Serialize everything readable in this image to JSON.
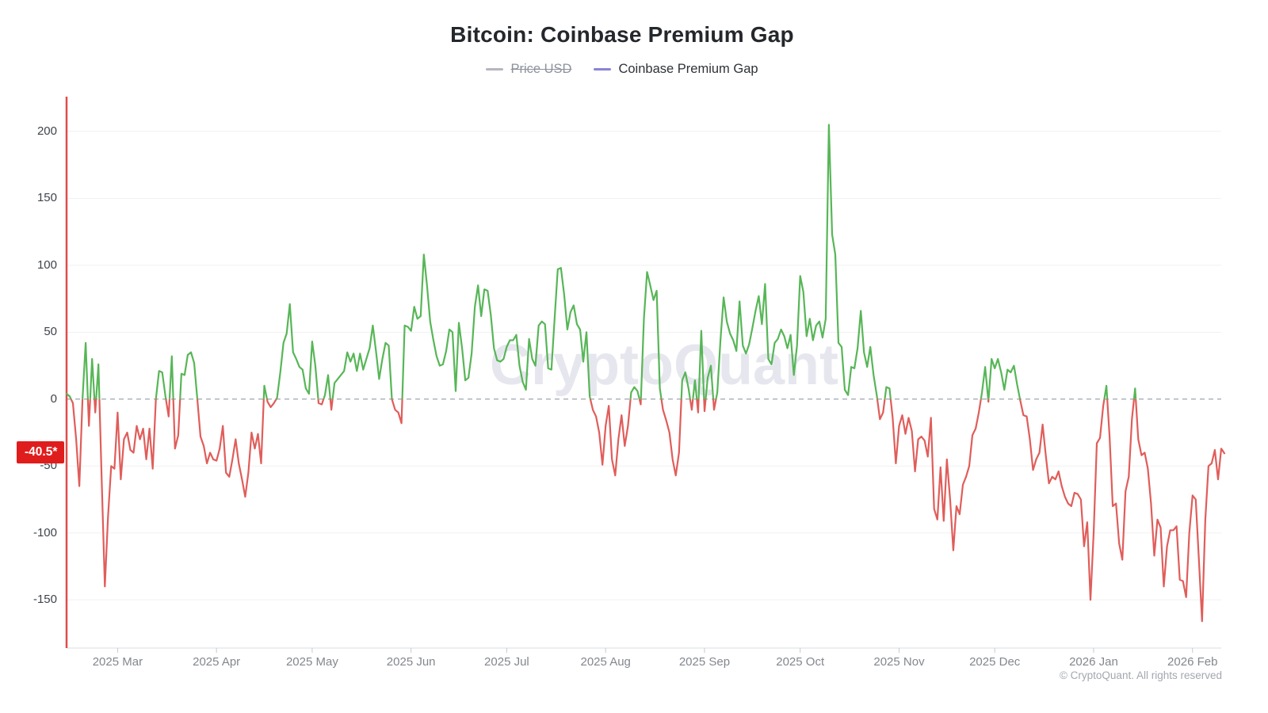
{
  "header": {
    "title": "Bitcoin: Coinbase Premium Gap"
  },
  "legend": {
    "items": [
      {
        "label": "Price USD",
        "color": "#b4b7bf",
        "disabled": true
      },
      {
        "label": "Coinbase Premium Gap",
        "color": "#8884d8",
        "disabled": false
      }
    ]
  },
  "watermark": {
    "text": "CryptoQuant"
  },
  "footer": {
    "copyright": "© CryptoQuant. All rights reserved"
  },
  "current_value": {
    "label": "-40.5*",
    "value": -40.5,
    "badge_color": "#e01d1d"
  },
  "chart_data": {
    "type": "line",
    "title": "Bitcoin: Coinbase Premium Gap",
    "series_name": "Coinbase Premium Gap",
    "xlabel": "",
    "ylabel": "",
    "y_ticks": [
      200,
      150,
      100,
      50,
      0,
      -50,
      -100,
      -150
    ],
    "ylim": [
      -186,
      226
    ],
    "grid": "horizontal",
    "zero_line": "dashed",
    "legend_position": "top",
    "colors": {
      "positive": "#57b657",
      "negative": "#e05d5a",
      "left_axis": "#e14b4b",
      "zero_dash": "#9ea4b0",
      "gridline": "#f0f1f4",
      "bottom_axis": "#d9dce1"
    },
    "x_tick_labels": [
      "2025 Mar",
      "2025 Apr",
      "2025 May",
      "2025 Jun",
      "2025 Jul",
      "2025 Aug",
      "2025 Sep",
      "2025 Oct",
      "2025 Nov",
      "2025 Dec",
      "2026 Jan",
      "2026 Feb"
    ],
    "x_tick_indices": [
      16,
      47,
      77,
      108,
      138,
      169,
      200,
      230,
      261,
      291,
      322,
      353
    ],
    "values": [
      4,
      2,
      -3,
      -30,
      -65,
      0,
      42,
      -20,
      30,
      -10,
      26,
      -60,
      -140,
      -88,
      -50,
      -52,
      -10,
      -60,
      -30,
      -25,
      -38,
      -40,
      -20,
      -30,
      -22,
      -45,
      -22,
      -52,
      0,
      21,
      20,
      2,
      -13,
      32,
      -37,
      -27,
      19,
      18,
      33,
      35,
      27,
      0,
      -28,
      -35,
      -48,
      -40,
      -45,
      -46,
      -37,
      -20,
      -55,
      -58,
      -45,
      -30,
      -48,
      -60,
      -73,
      -55,
      -25,
      -37,
      -26,
      -48,
      10,
      -2,
      -6,
      -3,
      1,
      20,
      42,
      49,
      71,
      35,
      30,
      24,
      22,
      8,
      4,
      43,
      25,
      -3,
      -4,
      3,
      18,
      -8,
      12,
      15,
      18,
      21,
      35,
      28,
      34,
      21,
      34,
      22,
      30,
      38,
      55,
      36,
      15,
      30,
      42,
      40,
      0,
      -8,
      -10,
      -18,
      55,
      54,
      51,
      69,
      60,
      62,
      108,
      85,
      58,
      44,
      32,
      25,
      26,
      36,
      52,
      50,
      6,
      57,
      38,
      14,
      16,
      34,
      69,
      85,
      62,
      82,
      81,
      63,
      38,
      29,
      28,
      30,
      39,
      44,
      44,
      48,
      25,
      13,
      7,
      45,
      30,
      25,
      55,
      58,
      56,
      23,
      22,
      60,
      97,
      98,
      78,
      52,
      65,
      70,
      56,
      52,
      28,
      50,
      2,
      -8,
      -13,
      -25,
      -49,
      -20,
      -5,
      -45,
      -57,
      -30,
      -12,
      -35,
      -20,
      5,
      9,
      6,
      -4,
      60,
      95,
      85,
      74,
      81,
      8,
      -8,
      -16,
      -25,
      -45,
      -57,
      -40,
      14,
      20,
      8,
      -8,
      14,
      -10,
      51,
      -9,
      16,
      25,
      -8,
      5,
      44,
      76,
      58,
      49,
      44,
      36,
      73,
      40,
      34,
      41,
      53,
      66,
      77,
      56,
      86,
      30,
      26,
      42,
      45,
      52,
      47,
      38,
      48,
      18,
      40,
      92,
      80,
      47,
      60,
      44,
      55,
      58,
      46,
      60,
      205,
      123,
      108,
      42,
      39,
      7,
      3,
      24,
      23,
      38,
      66,
      35,
      24,
      39,
      18,
      3,
      -15,
      -10,
      9,
      8,
      -14,
      -48,
      -20,
      -12,
      -26,
      -14,
      -24,
      -54,
      -30,
      -28,
      -31,
      -43,
      -14,
      -82,
      -90,
      -51,
      -91,
      -45,
      -75,
      -113,
      -80,
      -86,
      -64,
      -58,
      -50,
      -27,
      -22,
      -10,
      5,
      24,
      -2,
      30,
      23,
      30,
      20,
      7,
      22,
      20,
      25,
      11,
      -1,
      -12,
      -13,
      -30,
      -53,
      -45,
      -40,
      -19,
      -42,
      -63,
      -58,
      -60,
      -54,
      -65,
      -73,
      -78,
      -80,
      -70,
      -71,
      -75,
      -110,
      -92,
      -150,
      -100,
      -33,
      -29,
      -5,
      10,
      -28,
      -80,
      -78,
      -108,
      -120,
      -69,
      -58,
      -15,
      8,
      -30,
      -42,
      -40,
      -52,
      -78,
      -117,
      -90,
      -96,
      -140,
      -110,
      -98,
      -98,
      -95,
      -135,
      -136,
      -148,
      -100,
      -72,
      -75,
      -120,
      -166,
      -90,
      -50,
      -48,
      -38,
      -60,
      -37,
      -40.5
    ]
  }
}
